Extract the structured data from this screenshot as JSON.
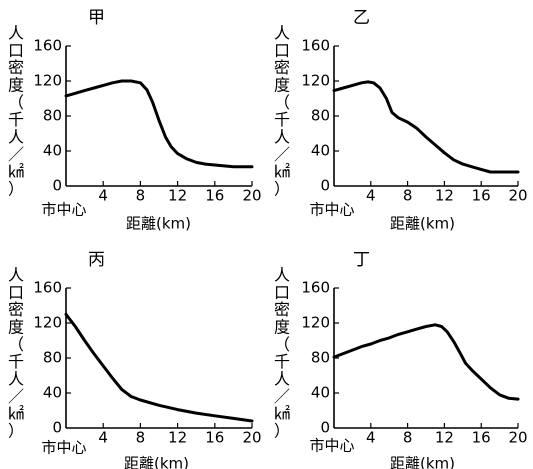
{
  "chart_data": [
    {
      "type": "line",
      "title": "甲",
      "ylabel": "人口密度（千人／㎢）",
      "xlabel": "距離(km)",
      "origin_label": "市中心",
      "xlim": [
        0,
        20
      ],
      "ylim": [
        0,
        160
      ],
      "xticks": [
        4,
        8,
        12,
        16,
        20
      ],
      "yticks": [
        0,
        40,
        80,
        120,
        160
      ],
      "series": [
        {
          "x": [
            0,
            1,
            2,
            3,
            4,
            5,
            6,
            7,
            8,
            8.7,
            9.3,
            10,
            10.7,
            11.3,
            12,
            13,
            14,
            15,
            16,
            17,
            18,
            19,
            20
          ],
          "y": [
            103,
            106,
            109,
            112,
            115,
            118,
            120,
            120,
            118,
            110,
            96,
            75,
            56,
            45,
            37,
            31,
            27,
            25,
            24,
            23,
            22,
            22,
            22
          ]
        }
      ]
    },
    {
      "type": "line",
      "title": "乙",
      "ylabel": "人口密度（千人／㎢）",
      "xlabel": "距離(km)",
      "origin_label": "市中心",
      "xlim": [
        0,
        20
      ],
      "ylim": [
        0,
        160
      ],
      "xticks": [
        4,
        8,
        12,
        16,
        20
      ],
      "yticks": [
        0,
        40,
        80,
        120,
        160
      ],
      "series": [
        {
          "x": [
            0,
            1,
            2,
            3,
            3.7,
            4.3,
            5,
            5.7,
            6.3,
            7,
            8,
            9,
            10,
            11,
            12,
            13,
            14,
            15,
            16,
            17,
            18,
            19,
            20
          ],
          "y": [
            109,
            112,
            115,
            118,
            119,
            118,
            112,
            100,
            84,
            78,
            73,
            66,
            56,
            47,
            38,
            30,
            25,
            22,
            19,
            16,
            16,
            16,
            16
          ]
        }
      ]
    },
    {
      "type": "line",
      "title": "丙",
      "ylabel": "人口密度（千人／㎢）",
      "xlabel": "距離(km)",
      "origin_label": "市中心",
      "xlim": [
        0,
        20
      ],
      "ylim": [
        0,
        160
      ],
      "xticks": [
        4,
        8,
        12,
        16,
        20
      ],
      "yticks": [
        0,
        40,
        80,
        120,
        160
      ],
      "series": [
        {
          "x": [
            0,
            1,
            2,
            3,
            4,
            5,
            6,
            7,
            8,
            10,
            12,
            14,
            16,
            18,
            20
          ],
          "y": [
            130,
            116,
            100,
            85,
            71,
            57,
            44,
            36,
            32,
            26,
            21,
            17,
            14,
            11,
            8
          ]
        }
      ]
    },
    {
      "type": "line",
      "title": "丁",
      "ylabel": "人口密度（千人／㎢）",
      "xlabel": "距離(km)",
      "origin_label": "市中心",
      "xlim": [
        0,
        20
      ],
      "ylim": [
        0,
        160
      ],
      "xticks": [
        4,
        8,
        12,
        16,
        20
      ],
      "yticks": [
        0,
        40,
        80,
        120,
        160
      ],
      "series": [
        {
          "x": [
            0,
            1,
            2,
            3,
            4,
            5,
            6,
            7,
            8,
            9,
            10,
            11,
            11.7,
            12.3,
            13,
            13.7,
            14.3,
            15,
            16,
            17,
            18,
            19,
            20
          ],
          "y": [
            81,
            85,
            89,
            93,
            96,
            100,
            103,
            107,
            110,
            113,
            116,
            118,
            116,
            110,
            99,
            86,
            74,
            66,
            56,
            46,
            38,
            34,
            33
          ]
        }
      ]
    }
  ]
}
